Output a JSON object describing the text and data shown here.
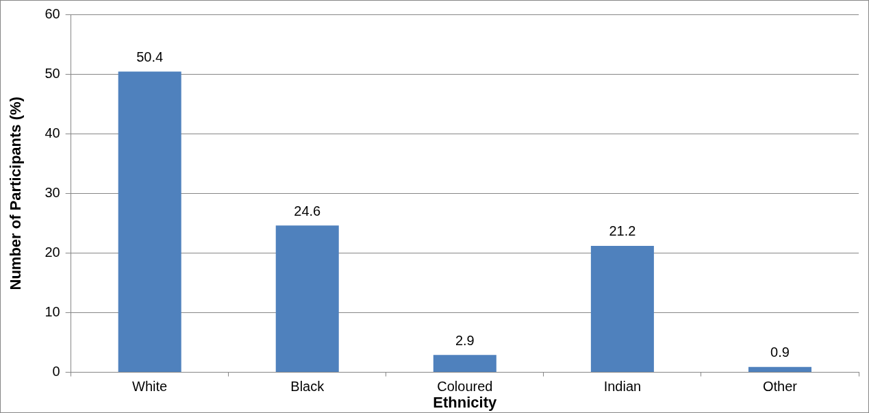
{
  "chart_data": {
    "type": "bar",
    "xlabel": "Ethnicity",
    "ylabel": "Number of Participants (%)",
    "categories": [
      "White",
      "Black",
      "Coloured",
      "Indian",
      "Other"
    ],
    "values": [
      50.4,
      24.6,
      2.9,
      21.2,
      0.9
    ],
    "color": "#4f81bd",
    "ylim": [
      0,
      60
    ],
    "yticks": [
      0,
      10,
      20,
      30,
      40,
      50,
      60
    ],
    "grid": "y",
    "legend": false,
    "data_labels": true
  }
}
